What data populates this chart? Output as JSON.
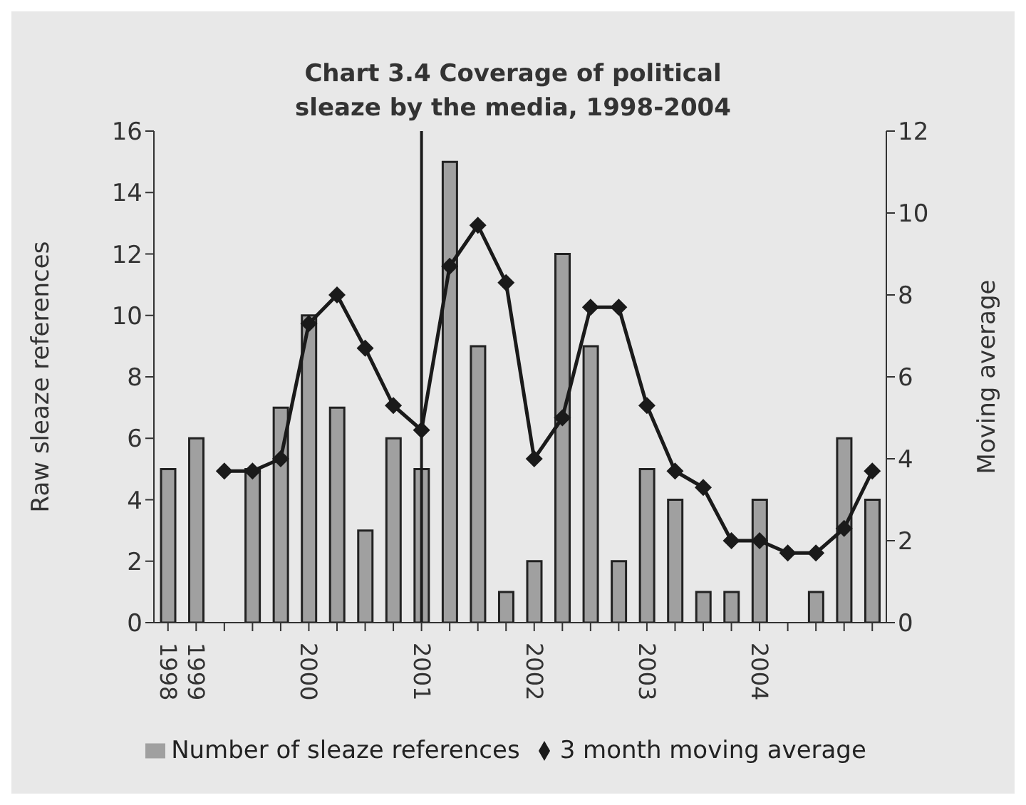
{
  "chart_data": {
    "type": "bar",
    "title": "Chart 3.4  Coverage of political sleaze by the media, 1998-2004",
    "categories": [
      "1998",
      "1999",
      null,
      null,
      null,
      "2000",
      null,
      null,
      null,
      "2001",
      null,
      null,
      null,
      "2002",
      null,
      null,
      null,
      "2003",
      null,
      null,
      null,
      "2004",
      null,
      null,
      null,
      null
    ],
    "series": [
      {
        "name": "Number of sleaze references",
        "color": "#a0a0a0",
        "values": [
          5,
          6,
          0,
          5,
          7,
          10,
          7,
          3,
          6,
          5,
          15,
          9,
          1,
          2,
          12,
          9,
          2,
          5,
          4,
          1,
          1,
          4,
          0,
          1,
          6,
          4
        ]
      },
      {
        "name": "3 month moving average",
        "type": "line",
        "axis": "y2",
        "color": "#1a1a1a",
        "values": [
          null,
          null,
          3.7,
          3.7,
          4.0,
          7.3,
          8.0,
          6.7,
          5.3,
          4.7,
          8.7,
          9.7,
          8.3,
          4.0,
          5.0,
          7.7,
          7.7,
          5.3,
          3.7,
          3.3,
          2.0,
          2.0,
          1.7,
          1.7,
          2.3,
          3.7
        ]
      }
    ],
    "ylabel": "Raw sleaze references",
    "y2label": "Moving average",
    "ylim": [
      0,
      16
    ],
    "yticks": [
      0,
      2,
      4,
      6,
      8,
      10,
      12,
      14,
      16
    ],
    "y2lim": [
      0,
      12
    ],
    "y2ticks": [
      0,
      2,
      4,
      6,
      8,
      10,
      12
    ],
    "ref_lines": [
      {
        "axis": "x",
        "value": "2001",
        "color": "#1a1a1a"
      }
    ],
    "marker": "diamond",
    "legend": "bottom"
  }
}
